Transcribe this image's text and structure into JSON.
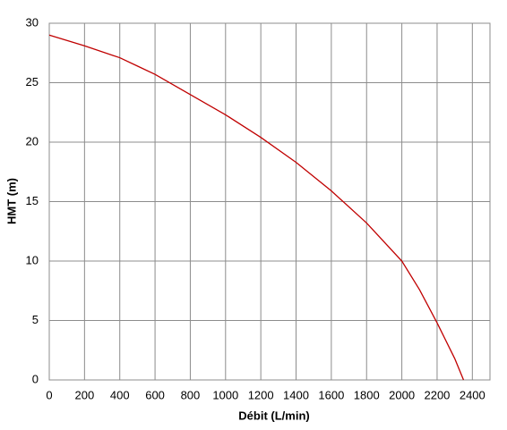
{
  "chart_data": {
    "type": "line",
    "x_label": "Débit (L/min)",
    "y_label": "HMT (m)",
    "x": [
      0,
      200,
      400,
      500,
      600,
      800,
      1000,
      1200,
      1400,
      1600,
      1800,
      2000,
      2100,
      2200,
      2300,
      2350
    ],
    "series": [
      {
        "name": "HMT",
        "color": "#c00000",
        "values": [
          29,
          28.1,
          27.1,
          26.4,
          25.7,
          24.0,
          22.3,
          20.4,
          18.3,
          15.9,
          13.2,
          10,
          7.6,
          4.8,
          1.8,
          0
        ]
      }
    ],
    "xlim": [
      0,
      2500
    ],
    "xticks": [
      0,
      200,
      400,
      600,
      800,
      1000,
      1200,
      1400,
      1600,
      1800,
      2000,
      2200,
      2400
    ],
    "ylim": [
      0,
      30
    ],
    "yticks": [
      0,
      5,
      10,
      15,
      20,
      25,
      30
    ],
    "grid": true
  }
}
